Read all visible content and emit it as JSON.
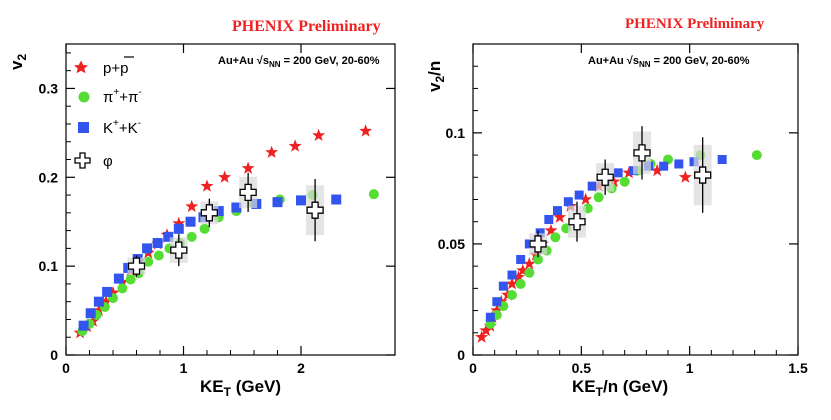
{
  "chart_data": [
    {
      "type": "scatter",
      "preliminary_label": "PHENIX Preliminary",
      "collision_label": "Au+Au √s",
      "collision_sub": "NN",
      "collision_rest": " = 200 GeV, 20-60%",
      "xlabel": "KE",
      "xlabel_sub": "T",
      "xlabel_rest": " (GeV)",
      "ylabel": "v",
      "ylabel_sub": "2",
      "ylabel_rest": "",
      "xlim": [
        0,
        2.8
      ],
      "ylim": [
        0,
        0.35
      ],
      "xticks": [
        0,
        1,
        2
      ],
      "yticks": [
        0,
        0.1,
        0.2,
        0.3
      ],
      "xtick_labels": [
        "0",
        "1",
        "2"
      ],
      "ytick_labels": [
        "0",
        "0.1",
        "0.2",
        "0.3"
      ],
      "series": [
        {
          "name": "p+p̄",
          "legend_parts": [
            "p+p",
            ""
          ],
          "marker": "star",
          "color": "#ee2222",
          "x": [
            0.12,
            0.18,
            0.23,
            0.28,
            0.34,
            0.4,
            0.48,
            0.55,
            0.62,
            0.7,
            0.78,
            0.86,
            0.96,
            1.07,
            1.2,
            1.35,
            1.55,
            1.75,
            1.95,
            2.15,
            2.55
          ],
          "y": [
            0.025,
            0.032,
            0.038,
            0.05,
            0.06,
            0.07,
            0.082,
            0.095,
            0.106,
            0.115,
            0.125,
            0.135,
            0.148,
            0.167,
            0.19,
            0.2,
            0.21,
            0.228,
            0.235,
            0.247,
            0.252
          ]
        },
        {
          "name": "π⁺+π⁻",
          "legend_parts": [
            "π",
            "+",
            "+π",
            "-"
          ],
          "marker": "circle",
          "color": "#55dd33",
          "x": [
            0.14,
            0.2,
            0.26,
            0.33,
            0.4,
            0.48,
            0.55,
            0.62,
            0.7,
            0.79,
            0.88,
            0.97,
            1.07,
            1.18,
            1.3,
            1.45,
            1.6,
            1.82,
            2.1,
            2.62
          ],
          "y": [
            0.027,
            0.035,
            0.045,
            0.054,
            0.064,
            0.075,
            0.085,
            0.092,
            0.105,
            0.112,
            0.12,
            0.126,
            0.133,
            0.142,
            0.155,
            0.162,
            0.17,
            0.175,
            0.18,
            0.181
          ]
        },
        {
          "name": "K⁺+K⁻",
          "legend_parts": [
            "K",
            "+",
            "+K",
            "-"
          ],
          "marker": "square",
          "color": "#3355ee",
          "x": [
            0.15,
            0.21,
            0.28,
            0.35,
            0.45,
            0.53,
            0.61,
            0.69,
            0.78,
            0.87,
            0.96,
            1.06,
            1.17,
            1.3,
            1.45,
            1.62,
            1.8,
            2.0,
            2.3
          ],
          "y": [
            0.033,
            0.047,
            0.06,
            0.071,
            0.086,
            0.098,
            0.108,
            0.12,
            0.126,
            0.133,
            0.142,
            0.15,
            0.155,
            0.162,
            0.166,
            0.17,
            0.172,
            0.174,
            0.175
          ]
        },
        {
          "name": "φ",
          "legend_parts": [
            "φ"
          ],
          "marker": "cross",
          "color": "#000000",
          "x": [
            0.6,
            0.96,
            1.22,
            1.55,
            2.12
          ],
          "y": [
            0.1,
            0.118,
            0.16,
            0.183,
            0.163
          ],
          "err": [
            0.012,
            0.018,
            0.016,
            0.022,
            0.035
          ]
        }
      ]
    },
    {
      "type": "scatter",
      "preliminary_label": "PHENIX Preliminary",
      "collision_label": "Au+Au √s",
      "collision_sub": "NN",
      "collision_rest": " = 200 GeV, 20-60%",
      "xlabel": "KE",
      "xlabel_sub": "T",
      "xlabel_rest": "/n (GeV)",
      "ylabel": "v",
      "ylabel_sub": "2",
      "ylabel_rest": "/n",
      "xlim": [
        0,
        1.5
      ],
      "ylim": [
        0,
        0.14
      ],
      "xticks": [
        0,
        0.5,
        1,
        1.5
      ],
      "yticks": [
        0,
        0.05,
        0.1
      ],
      "xtick_labels": [
        "0",
        "0.5",
        "1",
        "1.5"
      ],
      "ytick_labels": [
        "0",
        "0.05",
        "0.1"
      ],
      "series": [
        {
          "name": "p+p̄",
          "marker": "star",
          "color": "#ee2222",
          "x": [
            0.04,
            0.06,
            0.08,
            0.09,
            0.11,
            0.13,
            0.16,
            0.18,
            0.21,
            0.23,
            0.26,
            0.29,
            0.32,
            0.36,
            0.4,
            0.45,
            0.52,
            0.58,
            0.65,
            0.72,
            0.85,
            0.98
          ],
          "y": [
            0.008,
            0.011,
            0.013,
            0.017,
            0.02,
            0.024,
            0.027,
            0.032,
            0.035,
            0.038,
            0.041,
            0.045,
            0.05,
            0.056,
            0.062,
            0.067,
            0.07,
            0.076,
            0.078,
            0.082,
            0.083,
            0.08
          ]
        },
        {
          "name": "π⁺+π⁻",
          "marker": "circle",
          "color": "#55dd33",
          "x": [
            0.08,
            0.11,
            0.14,
            0.18,
            0.22,
            0.26,
            0.3,
            0.34,
            0.38,
            0.43,
            0.48,
            0.53,
            0.58,
            0.64,
            0.7,
            0.76,
            0.82,
            0.9,
            1.05,
            1.31
          ],
          "y": [
            0.014,
            0.018,
            0.022,
            0.027,
            0.032,
            0.037,
            0.043,
            0.047,
            0.053,
            0.057,
            0.06,
            0.066,
            0.071,
            0.075,
            0.078,
            0.083,
            0.086,
            0.088,
            0.09,
            0.09
          ]
        },
        {
          "name": "K⁺+K⁻",
          "marker": "square",
          "color": "#3355ee",
          "x": [
            0.08,
            0.11,
            0.14,
            0.18,
            0.22,
            0.26,
            0.31,
            0.35,
            0.39,
            0.44,
            0.49,
            0.55,
            0.61,
            0.67,
            0.74,
            0.81,
            0.88,
            0.95,
            1.02,
            1.15
          ],
          "y": [
            0.017,
            0.024,
            0.031,
            0.036,
            0.043,
            0.05,
            0.055,
            0.061,
            0.065,
            0.069,
            0.072,
            0.076,
            0.078,
            0.082,
            0.083,
            0.085,
            0.085,
            0.086,
            0.087,
            0.088
          ]
        },
        {
          "name": "φ",
          "marker": "cross",
          "color": "#000000",
          "x": [
            0.3,
            0.48,
            0.61,
            0.78,
            1.06
          ],
          "y": [
            0.05,
            0.06,
            0.08,
            0.091,
            0.081
          ],
          "err": [
            0.006,
            0.009,
            0.008,
            0.012,
            0.017
          ]
        }
      ]
    }
  ]
}
